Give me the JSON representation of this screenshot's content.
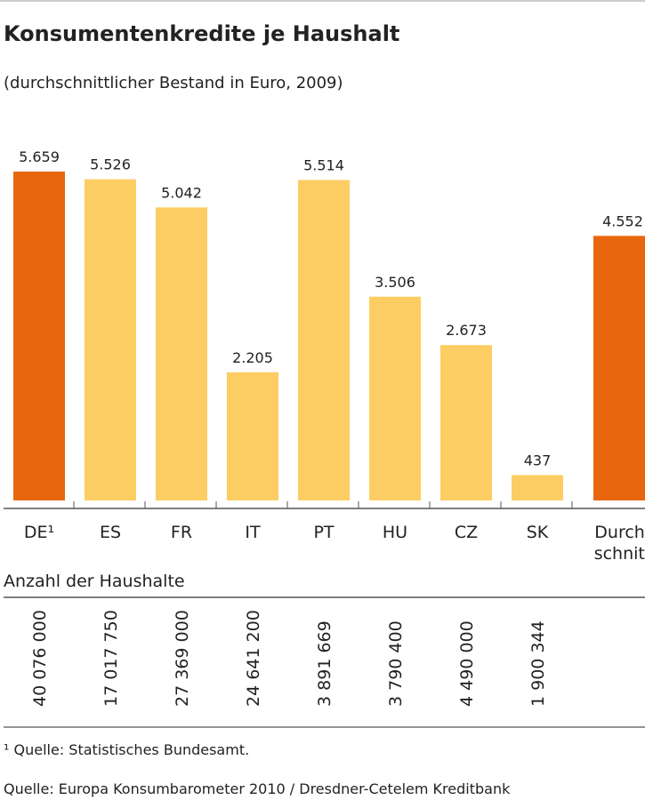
{
  "chart_data": {
    "type": "bar",
    "title": "Konsumentenkredite je Haushalt",
    "subtitle": "(durchschnittlicher Bestand in Euro, 2009)",
    "categories": [
      "DE¹",
      "ES",
      "FR",
      "IT",
      "PT",
      "HU",
      "CZ",
      "SK",
      "Durch-|schnitt"
    ],
    "values": [
      5659,
      5526,
      5042,
      2205,
      5514,
      3506,
      2673,
      437,
      4552
    ],
    "value_labels": [
      "5.659",
      "5.526",
      "5.042",
      "2.205",
      "5.514",
      "3.506",
      "2.673",
      "437",
      "4.552"
    ],
    "highlight": [
      true,
      false,
      false,
      false,
      false,
      false,
      false,
      false,
      true
    ],
    "colors": {
      "highlight": "#E8670E",
      "default": "#FCCD63",
      "axis": "#555555"
    },
    "households_label": "Anzahl der Haushalte",
    "households": [
      "40 076 000",
      "17 017 750",
      "27 369 000",
      "24 641 200",
      "3 891 669",
      "3 790 400",
      "4 490 000",
      "1 900 344"
    ],
    "footnote": "¹ Quelle: Statistisches Bundesamt.",
    "source": "Quelle: Europa Konsumbarometer 2010 / Dresdner-Cetelem Kreditbank",
    "grid": false,
    "ylim": [
      0,
      5659
    ]
  }
}
